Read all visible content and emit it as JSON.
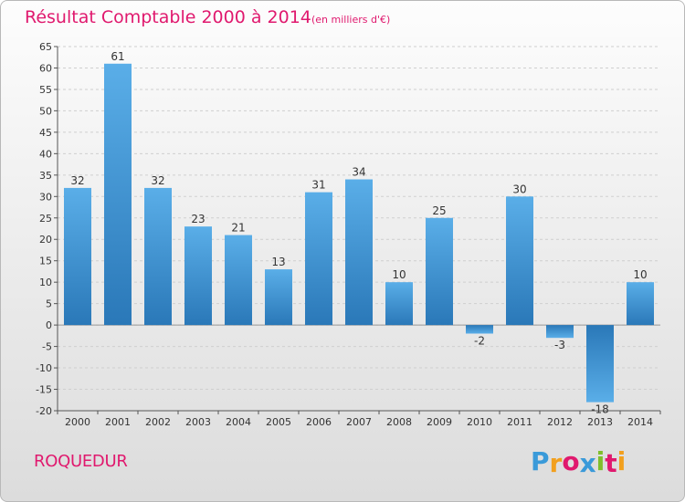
{
  "chart_data": {
    "type": "bar",
    "title": "Résultat Comptable 2000 à 2014",
    "unit": "(en milliers d'€)",
    "categories": [
      "2000",
      "2001",
      "2002",
      "2003",
      "2004",
      "2005",
      "2006",
      "2007",
      "2008",
      "2009",
      "2010",
      "2011",
      "2012",
      "2013",
      "2014"
    ],
    "values": [
      32,
      61,
      32,
      23,
      21,
      13,
      31,
      34,
      10,
      25,
      -2,
      30,
      -3,
      -18,
      10
    ],
    "ylim": [
      -20,
      65
    ],
    "ytick_step": 5,
    "grid": true,
    "bar_color_top": "#5aaee8",
    "bar_color_bottom": "#2a78b8"
  },
  "commune": "ROQUEDUR",
  "logo": {
    "letters": [
      "P",
      "r",
      "o",
      "x",
      "i",
      "t",
      "i"
    ],
    "colors": [
      "#3a9ad9",
      "#f2a01e",
      "#e0196e",
      "#3a9ad9",
      "#7fbf2a",
      "#e0196e",
      "#f2a01e"
    ]
  },
  "colors": {
    "accent": "#e0196e",
    "axis": "#555555",
    "grid": "#cfcfcf"
  }
}
